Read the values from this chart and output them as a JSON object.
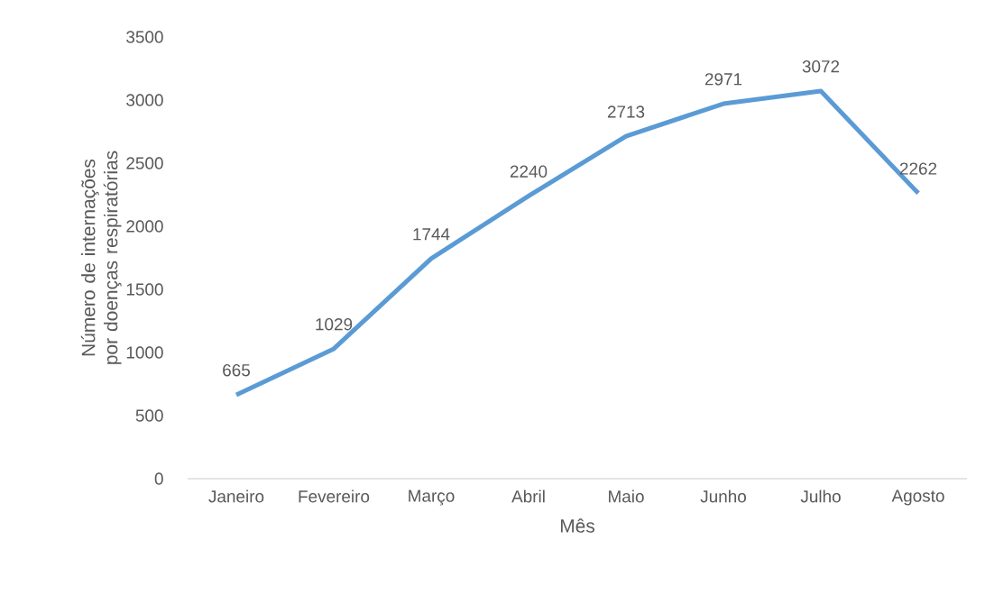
{
  "chart_data": {
    "type": "line",
    "xlabel": "Mês",
    "ylabel": "Número de internações por doenças respiratórias",
    "categories": [
      "Janeiro",
      "Fevereiro",
      "Março",
      "Abril",
      "Maio",
      "Junho",
      "Julho",
      "Agosto"
    ],
    "values": [
      665,
      1029,
      1744,
      2240,
      2713,
      2971,
      3072,
      2262
    ],
    "color": "#5b9bd5",
    "ylim": [
      0,
      3500
    ],
    "yticks": [
      0,
      500,
      1000,
      1500,
      2000,
      2500,
      3000,
      3500
    ],
    "grid": false,
    "marker": "none",
    "line_style": "solid",
    "data_labels": true
  }
}
